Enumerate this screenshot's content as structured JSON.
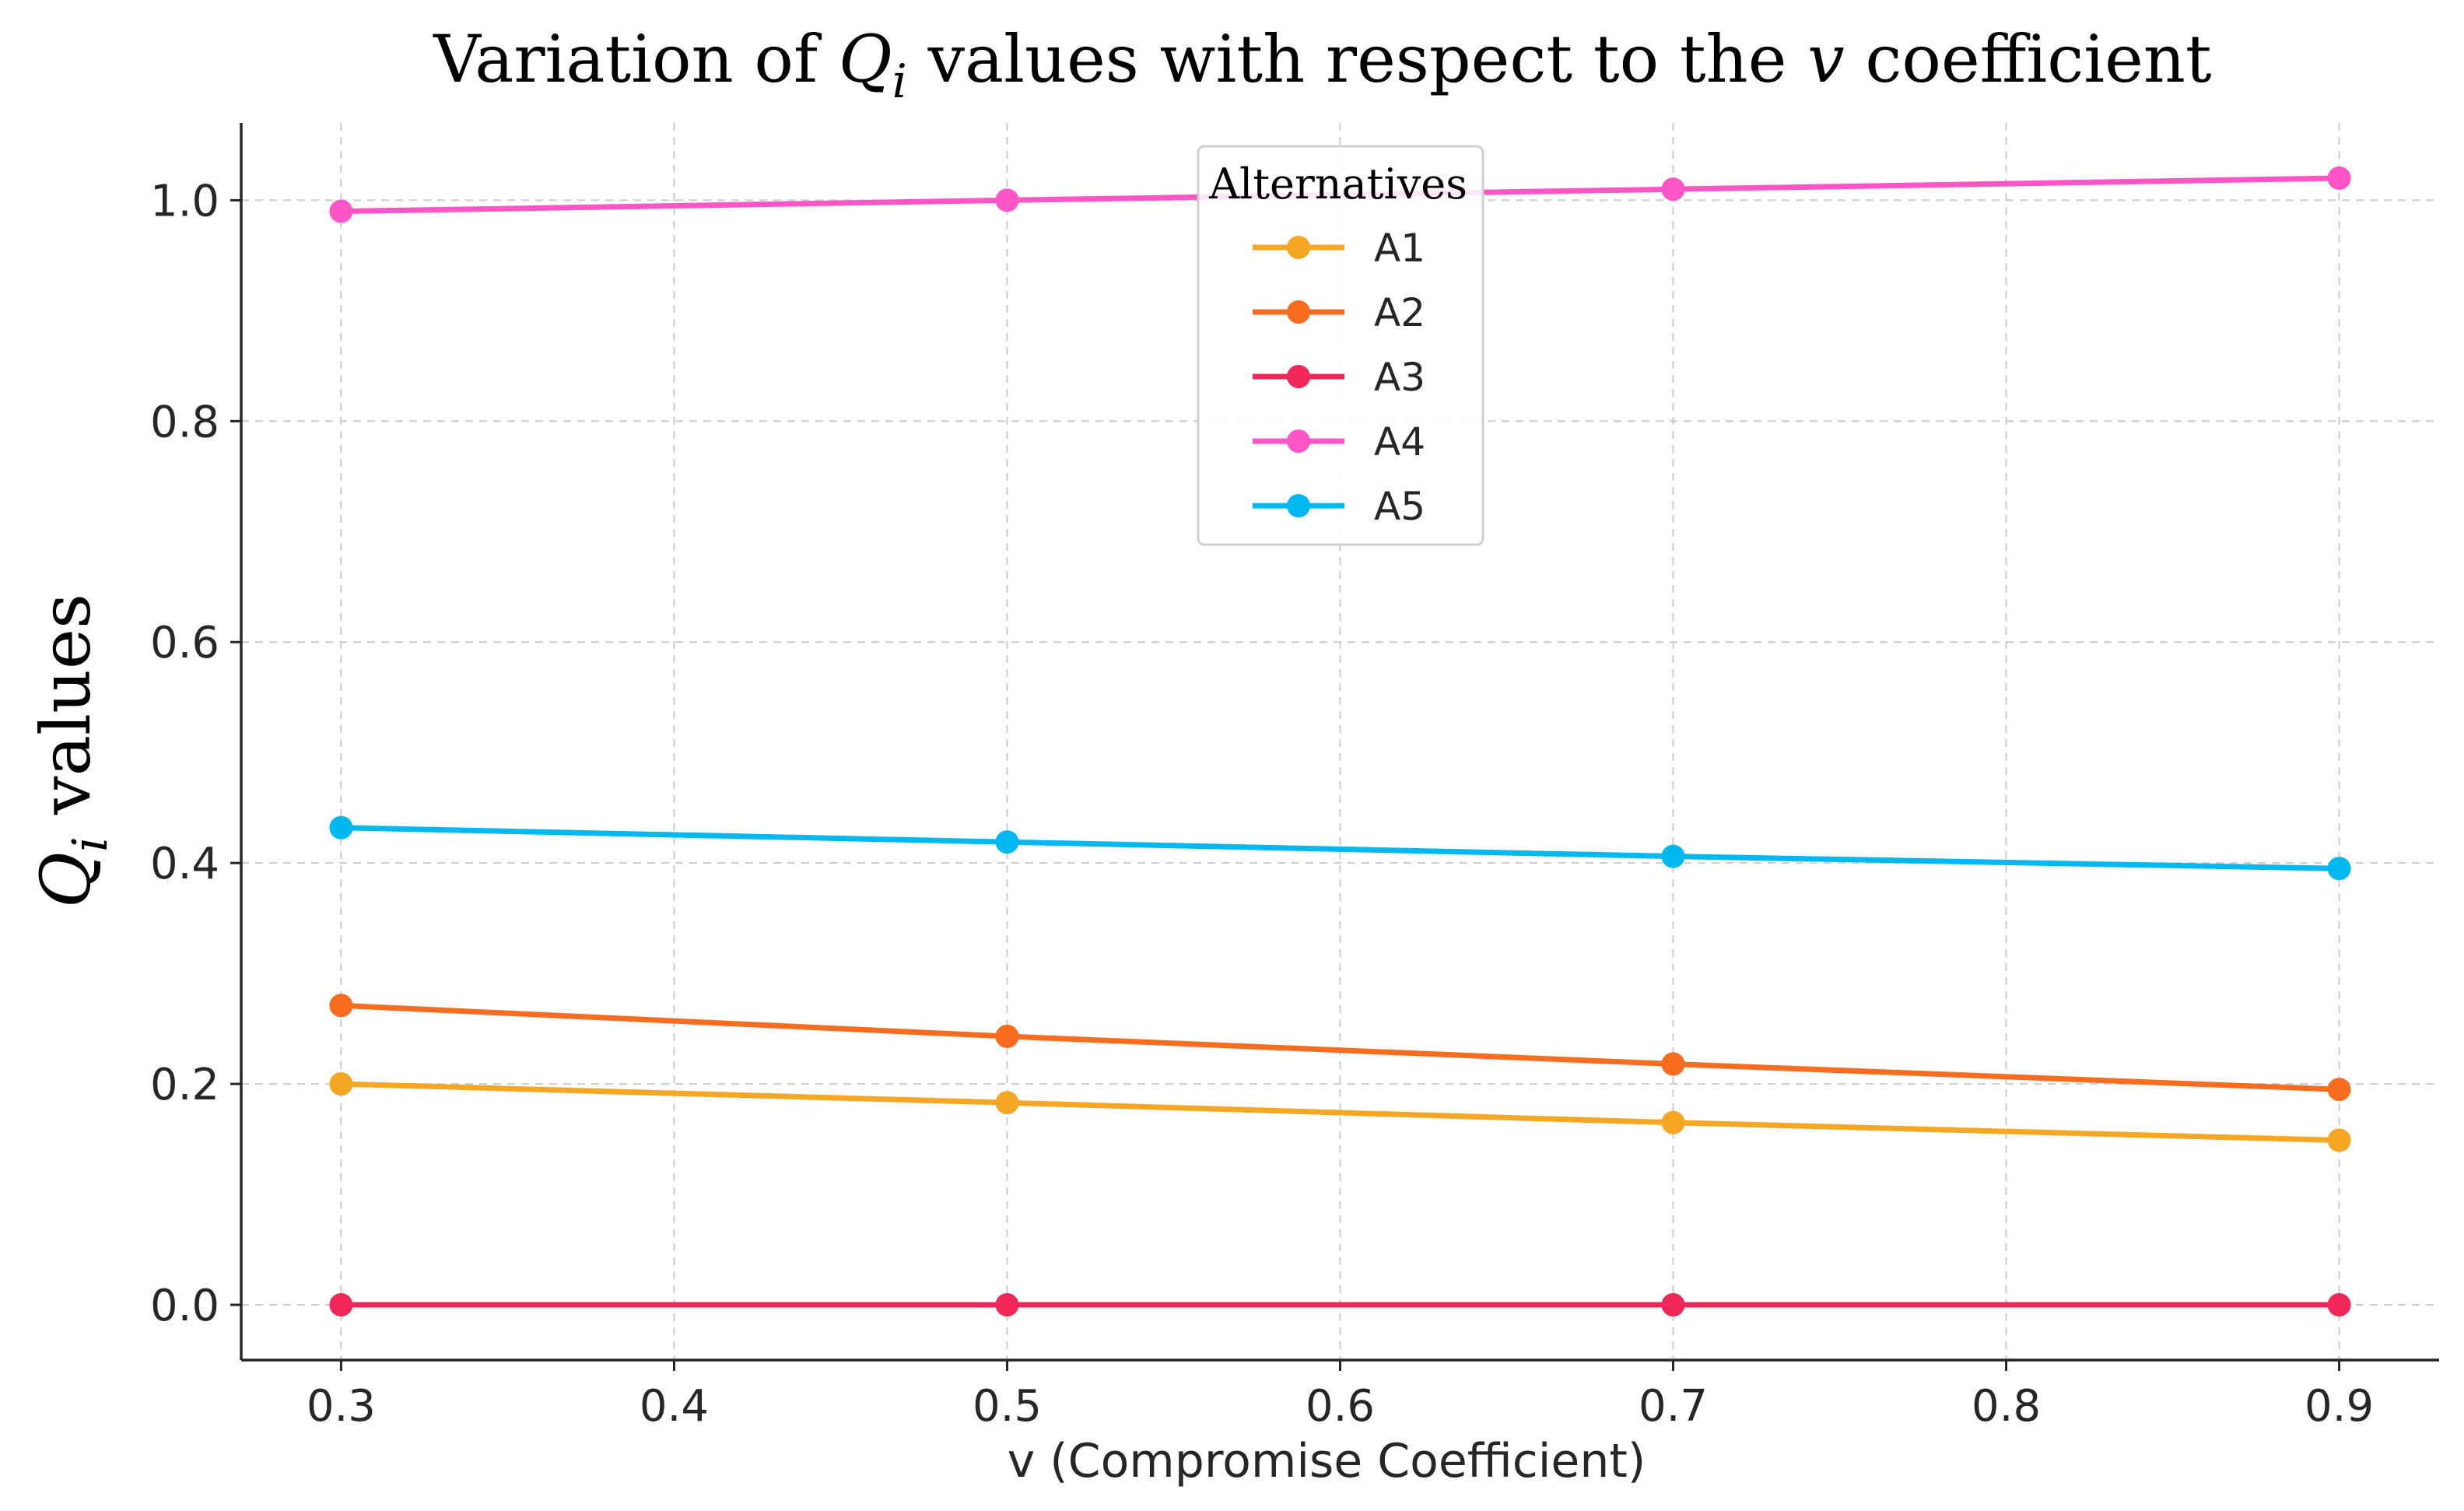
{
  "chart_data": {
    "type": "line",
    "title": "Variation of Qi values with respect to the v coefficient",
    "title_parts": {
      "prefix": "Variation of ",
      "math_main": "Q",
      "math_sub": "i",
      "middle": " values with respect to the ",
      "math_v": "v",
      "suffix": " coefficient"
    },
    "xlabel": "v (Compromise Coefficient)",
    "ylabel": "Qi values",
    "ylabel_parts": {
      "math_main": "Q",
      "math_sub": "i",
      "text": " values"
    },
    "x": [
      0.3,
      0.5,
      0.7,
      0.9
    ],
    "xlim": [
      0.27,
      0.93
    ],
    "ylim": [
      -0.05,
      1.07
    ],
    "xticks": [
      0.3,
      0.4,
      0.5,
      0.6,
      0.7,
      0.8,
      0.9
    ],
    "xtick_labels": [
      "0.3",
      "0.4",
      "0.5",
      "0.6",
      "0.7",
      "0.8",
      "0.9"
    ],
    "yticks": [
      0.0,
      0.2,
      0.4,
      0.6,
      0.8,
      1.0
    ],
    "ytick_labels": [
      "0.0",
      "0.2",
      "0.4",
      "0.6",
      "0.8",
      "1.0"
    ],
    "grid": true,
    "legend": {
      "title": "Alternatives",
      "placement": "top-center"
    },
    "series": [
      {
        "name": "A1",
        "color": "#f5a623",
        "values": [
          0.2,
          0.183,
          0.165,
          0.149
        ]
      },
      {
        "name": "A2",
        "color": "#f76c1e",
        "values": [
          0.271,
          0.243,
          0.218,
          0.195
        ]
      },
      {
        "name": "A3",
        "color": "#f0285a",
        "values": [
          0.0,
          0.0,
          0.0,
          0.0
        ]
      },
      {
        "name": "A4",
        "color": "#ff55c6",
        "values": [
          0.99,
          1.0,
          1.01,
          1.02
        ]
      },
      {
        "name": "A5",
        "color": "#00b8f0",
        "values": [
          0.432,
          0.419,
          0.406,
          0.395
        ]
      }
    ]
  }
}
